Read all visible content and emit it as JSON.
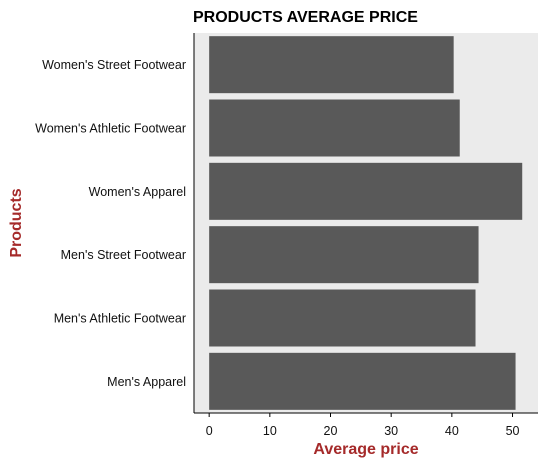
{
  "chart_data": {
    "type": "bar",
    "orientation": "horizontal",
    "title": "PRODUCTS AVERAGE PRICE",
    "xlabel": "Average price",
    "ylabel": "Products",
    "categories": [
      "Women's Street Footwear",
      "Women's Athletic Footwear",
      "Women's Apparel",
      "Men's Street Footwear",
      "Men's Athletic Footwear",
      "Men's Apparel"
    ],
    "values": [
      40.3,
      41.3,
      51.6,
      44.4,
      43.9,
      50.5
    ],
    "xlim": [
      -2.5,
      54.2
    ],
    "xticks": [
      "0",
      "10",
      "20",
      "30",
      "40",
      "50"
    ],
    "grid": false,
    "colors": {
      "bar": "#595959",
      "panel": "#ebebeb",
      "axis_label": "#a52a2a",
      "axis_line": "#000000"
    }
  }
}
